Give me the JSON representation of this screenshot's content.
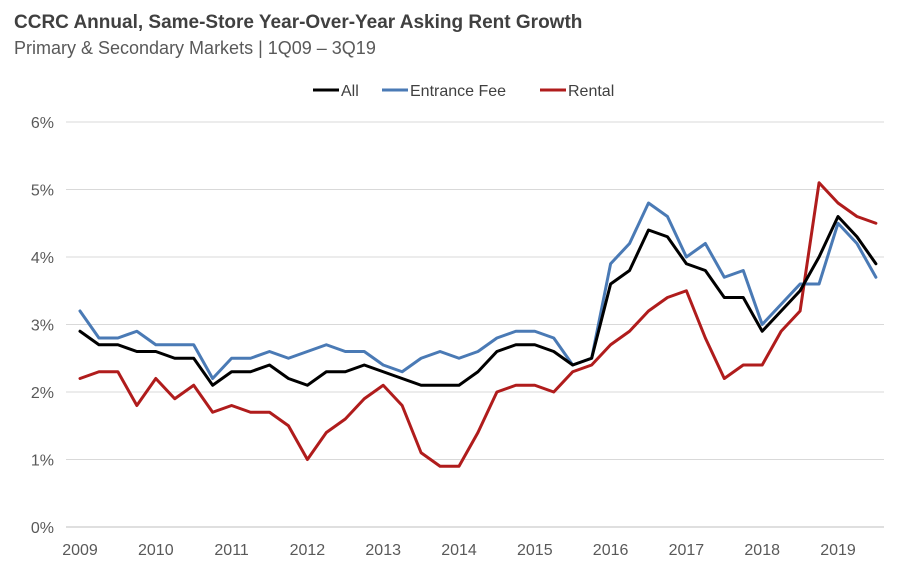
{
  "chart_data": {
    "type": "line",
    "title": "CCRC Annual, Same-Store Year-Over-Year Asking Rent Growth",
    "subtitle": "Primary & Secondary Markets | 1Q09 – 3Q19",
    "xlabel": "",
    "ylabel": "",
    "ylim": [
      0,
      6
    ],
    "yticks": [
      "0%",
      "1%",
      "2%",
      "3%",
      "4%",
      "5%",
      "6%"
    ],
    "xticks": [
      "2009",
      "2010",
      "2011",
      "2012",
      "2013",
      "2014",
      "2015",
      "2016",
      "2017",
      "2018",
      "2019"
    ],
    "grid": true,
    "legend_position": "top-center",
    "x": [
      "1Q09",
      "2Q09",
      "3Q09",
      "4Q09",
      "1Q10",
      "2Q10",
      "3Q10",
      "4Q10",
      "1Q11",
      "2Q11",
      "3Q11",
      "4Q11",
      "1Q12",
      "2Q12",
      "3Q12",
      "4Q12",
      "1Q13",
      "2Q13",
      "3Q13",
      "4Q13",
      "1Q14",
      "2Q14",
      "3Q14",
      "4Q14",
      "1Q15",
      "2Q15",
      "3Q15",
      "4Q15",
      "1Q16",
      "2Q16",
      "3Q16",
      "4Q16",
      "1Q17",
      "2Q17",
      "3Q17",
      "4Q17",
      "1Q18",
      "2Q18",
      "3Q18",
      "4Q18",
      "1Q19",
      "2Q19",
      "3Q19"
    ],
    "series": [
      {
        "name": "All",
        "color": "#000000",
        "values": [
          2.9,
          2.7,
          2.7,
          2.6,
          2.6,
          2.5,
          2.5,
          2.1,
          2.3,
          2.3,
          2.4,
          2.2,
          2.1,
          2.3,
          2.3,
          2.4,
          2.3,
          2.2,
          2.1,
          2.1,
          2.1,
          2.3,
          2.6,
          2.7,
          2.7,
          2.6,
          2.4,
          2.5,
          3.6,
          3.8,
          4.4,
          4.3,
          3.9,
          3.8,
          3.4,
          3.4,
          2.9,
          3.2,
          3.5,
          4.0,
          4.6,
          4.3,
          3.9
        ]
      },
      {
        "name": "Entrance Fee",
        "color": "#4a7ab5",
        "values": [
          3.2,
          2.8,
          2.8,
          2.9,
          2.7,
          2.7,
          2.7,
          2.2,
          2.5,
          2.5,
          2.6,
          2.5,
          2.6,
          2.7,
          2.6,
          2.6,
          2.4,
          2.3,
          2.5,
          2.6,
          2.5,
          2.6,
          2.8,
          2.9,
          2.9,
          2.8,
          2.4,
          2.5,
          3.9,
          4.2,
          4.8,
          4.6,
          4.0,
          4.2,
          3.7,
          3.8,
          3.0,
          3.3,
          3.6,
          3.6,
          4.5,
          4.2,
          3.7
        ]
      },
      {
        "name": "Rental",
        "color": "#b01c1c",
        "values": [
          2.2,
          2.3,
          2.3,
          1.8,
          2.2,
          1.9,
          2.1,
          1.7,
          1.8,
          1.7,
          1.7,
          1.5,
          1.0,
          1.4,
          1.6,
          1.9,
          2.1,
          1.8,
          1.1,
          0.9,
          0.9,
          1.4,
          2.0,
          2.1,
          2.1,
          2.0,
          2.3,
          2.4,
          2.7,
          2.9,
          3.2,
          3.4,
          3.5,
          2.8,
          2.2,
          2.4,
          2.4,
          2.9,
          3.2,
          5.1,
          4.8,
          4.6,
          4.5
        ]
      }
    ]
  }
}
